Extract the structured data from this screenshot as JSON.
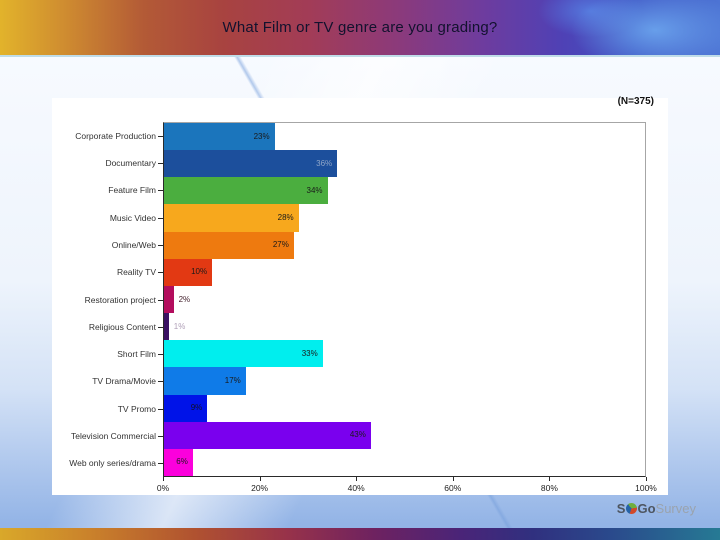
{
  "slide": {
    "title": "What Film or TV genre are you grading?",
    "sample_size": "(N=375)",
    "logo": {
      "s": "S",
      "go": "Go",
      "survey": "Survey"
    }
  },
  "chart_data": {
    "type": "bar",
    "orientation": "horizontal",
    "title": "",
    "xlabel": "",
    "ylabel": "",
    "xlim": [
      0,
      100
    ],
    "grid": false,
    "legend": false,
    "x_tick_labels": [
      "0%",
      "20%",
      "40%",
      "60%",
      "80%",
      "100%"
    ],
    "x_tick_values": [
      0,
      20,
      40,
      60,
      80,
      100
    ],
    "categories": [
      "Corporate Production",
      "Documentary",
      "Feature Film",
      "Music Video",
      "Online/Web",
      "Reality TV",
      "Restoration project",
      "Religious Content",
      "Short Film",
      "TV Drama/Movie",
      "TV Promo",
      "Television Commercial",
      "Web only series/drama"
    ],
    "values": [
      23,
      36,
      34,
      28,
      27,
      10,
      2,
      1,
      33,
      17,
      9,
      43,
      6
    ],
    "value_labels": [
      "23%",
      "36%",
      "34%",
      "28%",
      "27%",
      "10%",
      "2%",
      "1%",
      "33%",
      "17%",
      "9%",
      "43%",
      "6%"
    ],
    "bar_colors": [
      "#1B75BC",
      "#1C4F9C",
      "#4BAE3F",
      "#F7A81D",
      "#EE7A0F",
      "#E23913",
      "#B30D5D",
      "#3A1163",
      "#00EEEE",
      "#0F7BE8",
      "#0013E8",
      "#7A00EE",
      "#FB00DC"
    ],
    "value_label_colors": [
      "#1a1a1a",
      "#8FA6C8",
      "#1a1a1a",
      "#1a1a1a",
      "#1a1a1a",
      "#1a1a1a",
      "#44222E",
      "#B0A0B8",
      "#1a1a1a",
      "#1a1a1a",
      "#101028",
      "#1a1a1a",
      "#1a1a1a"
    ],
    "value_label_placement": [
      "inside",
      "inside",
      "inside",
      "inside",
      "inside",
      "inside",
      "outside",
      "outside",
      "inside",
      "inside",
      "inside",
      "inside",
      "inside"
    ]
  }
}
